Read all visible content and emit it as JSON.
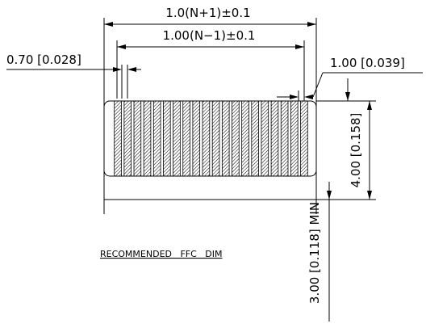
{
  "labels": {
    "overall_width": "1.0(N+1)±0.1",
    "pitch_span": "1.00(N−1)±0.1",
    "conductor_width": "0.70 [0.028]",
    "pitch": "1.00 [0.039]",
    "height": "4.00 [0.158]",
    "min_length": "3.00 [0.118] MIN",
    "note": "RECOMMENDED   FFC   DIM"
  },
  "conductor_count": 20,
  "colors": {
    "line": "#000000",
    "background": "#ffffff"
  }
}
